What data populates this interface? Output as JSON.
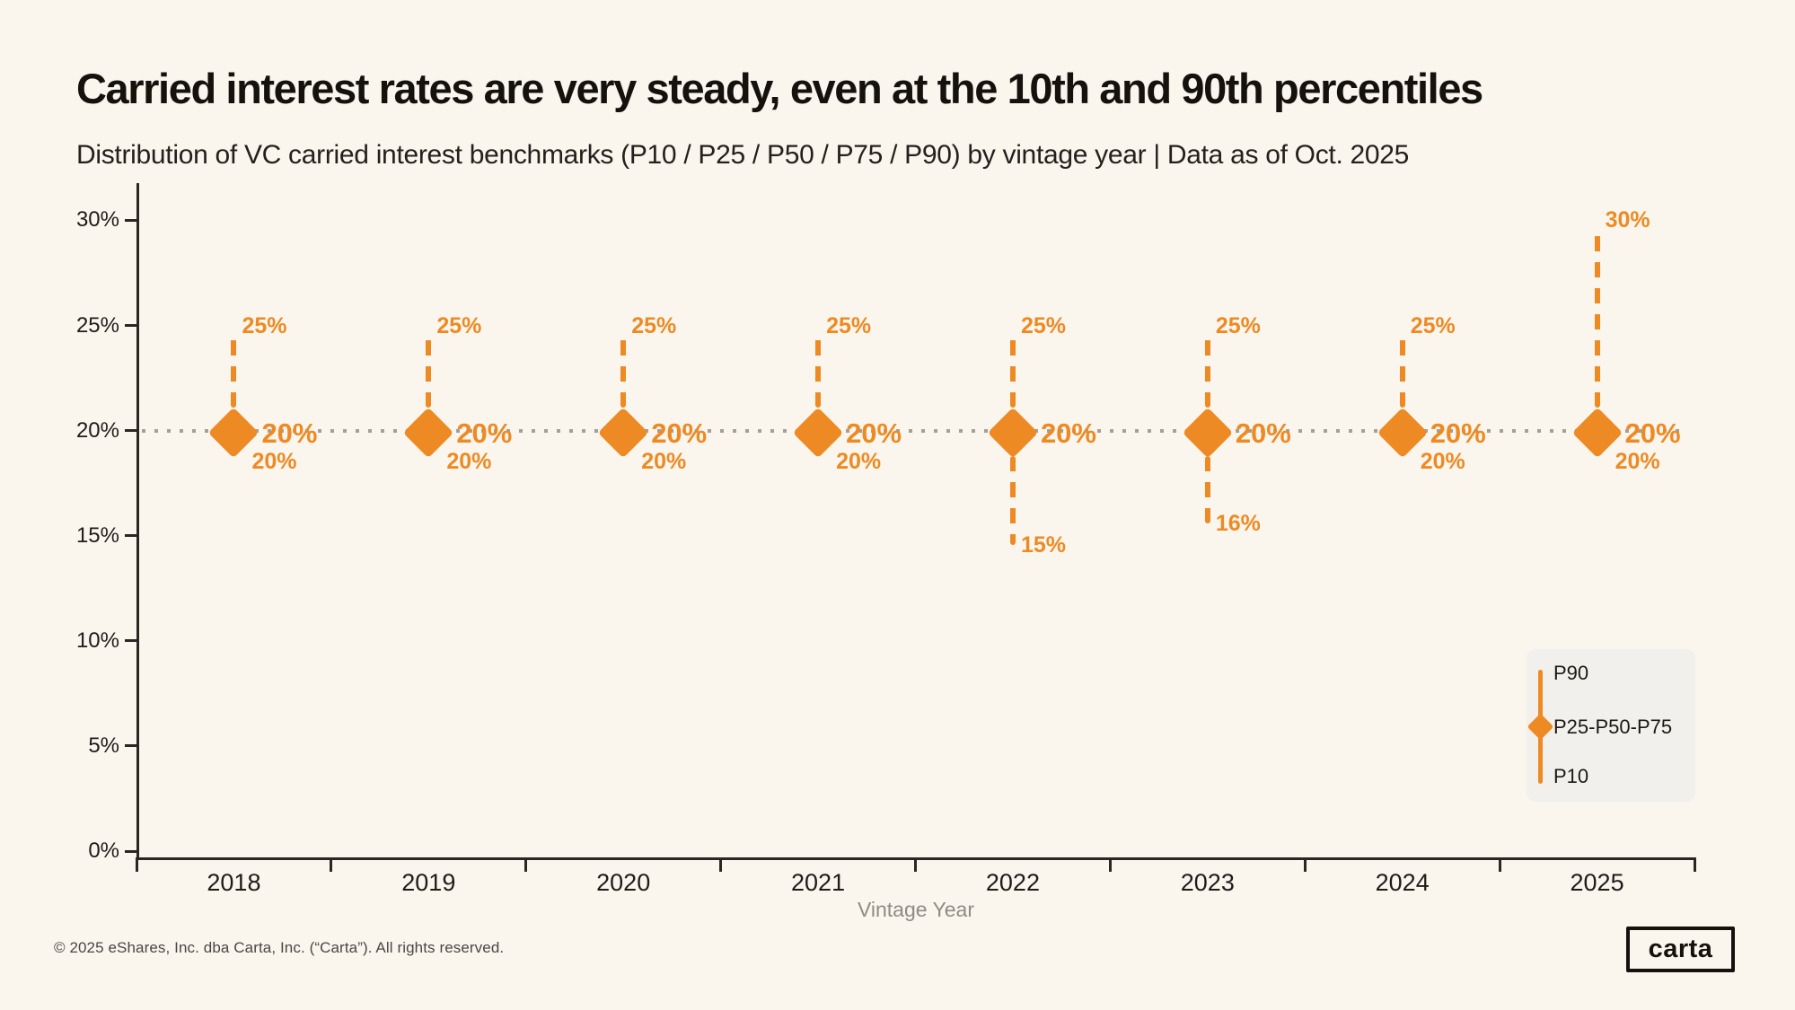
{
  "header": {
    "title": "Carried interest rates are very steady, even at the 10th and 90th percentiles",
    "subtitle": "Distribution of VC carried interest benchmarks (P10 / P25 / P50 / P75 / P90) by vintage year | Data as of Oct. 2025"
  },
  "colors": {
    "background": "#faf6ee",
    "accent_orange": "#ee8a23",
    "axis": "#2a2621",
    "grid_dots": "#a39f99",
    "muted_text": "#8f8b85",
    "footer_text": "#4a4642",
    "legend_background": "#f2f0ec"
  },
  "chart_data": {
    "type": "scatter",
    "subtype": "percentile range chart: dashed whiskers P90/P10 with diamond marker at P25-P50-P75",
    "categories": [
      "2018",
      "2019",
      "2020",
      "2021",
      "2022",
      "2023",
      "2024",
      "2025"
    ],
    "series": [
      {
        "name": "P90",
        "values": [
          25,
          25,
          25,
          25,
          25,
          25,
          25,
          30
        ]
      },
      {
        "name": "P75",
        "values": [
          20,
          20,
          20,
          20,
          20,
          20,
          20,
          20
        ]
      },
      {
        "name": "P50",
        "values": [
          20,
          20,
          20,
          20,
          20,
          20,
          20,
          20
        ]
      },
      {
        "name": "P25",
        "values": [
          20,
          20,
          20,
          20,
          20,
          20,
          20,
          20
        ]
      },
      {
        "name": "P10",
        "values": [
          20,
          20,
          20,
          20,
          15,
          16,
          20,
          20
        ]
      }
    ],
    "point_labels": {
      "p90": [
        "25%",
        "25%",
        "25%",
        "25%",
        "25%",
        "25%",
        "25%",
        "30%"
      ],
      "median": [
        "20%",
        "20%",
        "20%",
        "20%",
        "20%",
        "20%",
        "20%",
        "20%"
      ],
      "p10": [
        "20%",
        "20%",
        "20%",
        "20%",
        "15%",
        "16%",
        "20%",
        "20%"
      ]
    },
    "xlabel": "Vintage Year",
    "ylabel": "",
    "ylim": [
      0,
      32
    ],
    "yticks": [
      {
        "value": 30,
        "label": "30%"
      },
      {
        "value": 25,
        "label": "25%"
      },
      {
        "value": 20,
        "label": "20%"
      },
      {
        "value": 15,
        "label": "15%"
      },
      {
        "value": 10,
        "label": "10%"
      },
      {
        "value": 5,
        "label": "5%"
      },
      {
        "value": 0,
        "label": "0%"
      }
    ],
    "reference_line": {
      "value": 20,
      "style": "dotted"
    },
    "grid": false,
    "legend": {
      "position": "bottom-right",
      "entries": [
        "P90",
        "P25-P50-P75",
        "P10"
      ]
    }
  },
  "footer": {
    "copyright": "© 2025 eShares, Inc. dba Carta, Inc. (“Carta”). All rights reserved.",
    "logo_text": "carta"
  }
}
